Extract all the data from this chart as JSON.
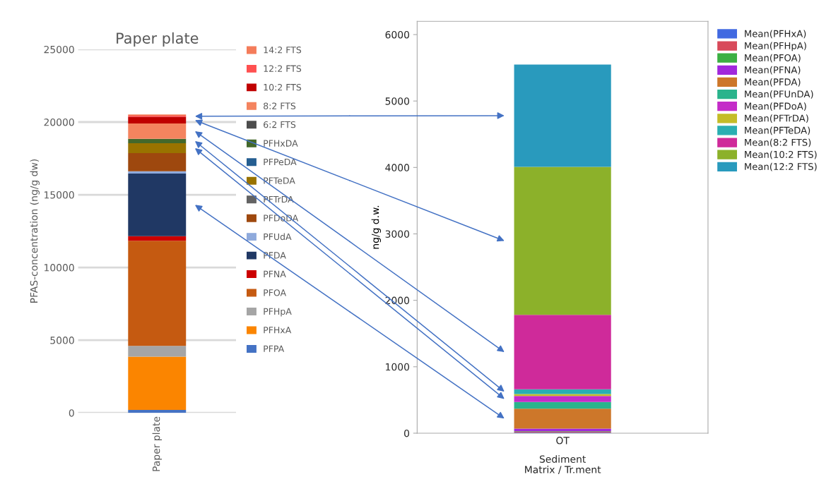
{
  "chart_data": [
    {
      "type": "bar",
      "stacked": true,
      "title": "Paper plate",
      "ylabel": "PFAS-concentration (ng/g dw)",
      "categories": [
        "Paper plate"
      ],
      "ylim": [
        0,
        25000
      ],
      "yticks": [
        0,
        5000,
        10000,
        15000,
        20000,
        25000
      ],
      "grid": "y",
      "legend": "right",
      "series": [
        {
          "name": "PFPA",
          "color": "#4472c4",
          "values": [
            200
          ]
        },
        {
          "name": "PFHxA",
          "color": "#fb8500",
          "values": [
            3660
          ]
        },
        {
          "name": "PFHpA",
          "color": "#a5a5a5",
          "values": [
            750
          ]
        },
        {
          "name": "PFOA",
          "color": "#c55a11",
          "values": [
            7230
          ]
        },
        {
          "name": "PFNA",
          "color": "#cc0000",
          "values": [
            310
          ]
        },
        {
          "name": "PFDA",
          "color": "#203864",
          "values": [
            4310
          ]
        },
        {
          "name": "PFUdA",
          "color": "#8faadc",
          "values": [
            150
          ]
        },
        {
          "name": "PFDoDA",
          "color": "#9e480e",
          "values": [
            1260
          ]
        },
        {
          "name": "PFTrDA",
          "color": "#636363",
          "values": [
            null
          ]
        },
        {
          "name": "PFTeDA",
          "color": "#997300",
          "values": [
            670
          ]
        },
        {
          "name": "PFPeDA",
          "color": "#255e91",
          "values": [
            null
          ]
        },
        {
          "name": "PFHxDA",
          "color": "#43682b",
          "values": [
            310
          ]
        },
        {
          "name": "6:2 FTS",
          "color": "#4d4d4d",
          "values": [
            null
          ]
        },
        {
          "name": "8:2 FTS",
          "color": "#f4845f",
          "values": [
            1050
          ]
        },
        {
          "name": "10:2 FTS",
          "color": "#c00000",
          "values": [
            460
          ]
        },
        {
          "name": "12:2 FTS",
          "color": "#ff5050",
          "values": [
            80
          ]
        },
        {
          "name": "14:2 FTS",
          "color": "#f47c5a",
          "values": [
            80
          ]
        }
      ]
    },
    {
      "type": "bar",
      "stacked": true,
      "ylabel": "ng/g d.w.",
      "xlabel": "Matrix / Tr.ment",
      "categories": [
        "OT"
      ],
      "annotations": [
        "Sediment"
      ],
      "ylim": [
        0,
        6200
      ],
      "yticks": [
        0,
        1000,
        2000,
        3000,
        4000,
        5000,
        6000
      ],
      "grid": false,
      "legend": "right",
      "series": [
        {
          "name": "Mean(PFHxA)",
          "color": "#4169e1",
          "values": [
            10
          ]
        },
        {
          "name": "Mean(PFHpA)",
          "color": "#d84a5a",
          "values": [
            10
          ]
        },
        {
          "name": "Mean(PFOA)",
          "color": "#3cb043",
          "values": [
            10
          ]
        },
        {
          "name": "Mean(PFNA)",
          "color": "#a128dc",
          "values": [
            40
          ]
        },
        {
          "name": "Mean(PFDA)",
          "color": "#cd772a",
          "values": [
            300
          ]
        },
        {
          "name": "Mean(PFUnDA)",
          "color": "#2ab48c",
          "values": [
            100
          ]
        },
        {
          "name": "Mean(PFDoA)",
          "color": "#c42cc8",
          "values": [
            90
          ]
        },
        {
          "name": "Mean(PFTrDA)",
          "color": "#c4bc28",
          "values": [
            30
          ]
        },
        {
          "name": "Mean(PFTeDA)",
          "color": "#2aaeb2",
          "values": [
            70
          ]
        },
        {
          "name": "Mean(8:2 FTS)",
          "color": "#cf2a9a",
          "values": [
            1120
          ]
        },
        {
          "name": "Mean(10:2 FTS)",
          "color": "#8cb12a",
          "values": [
            2230
          ]
        },
        {
          "name": "Mean(12:2 FTS)",
          "color": "#299abd",
          "values": [
            1540
          ]
        }
      ]
    }
  ]
}
